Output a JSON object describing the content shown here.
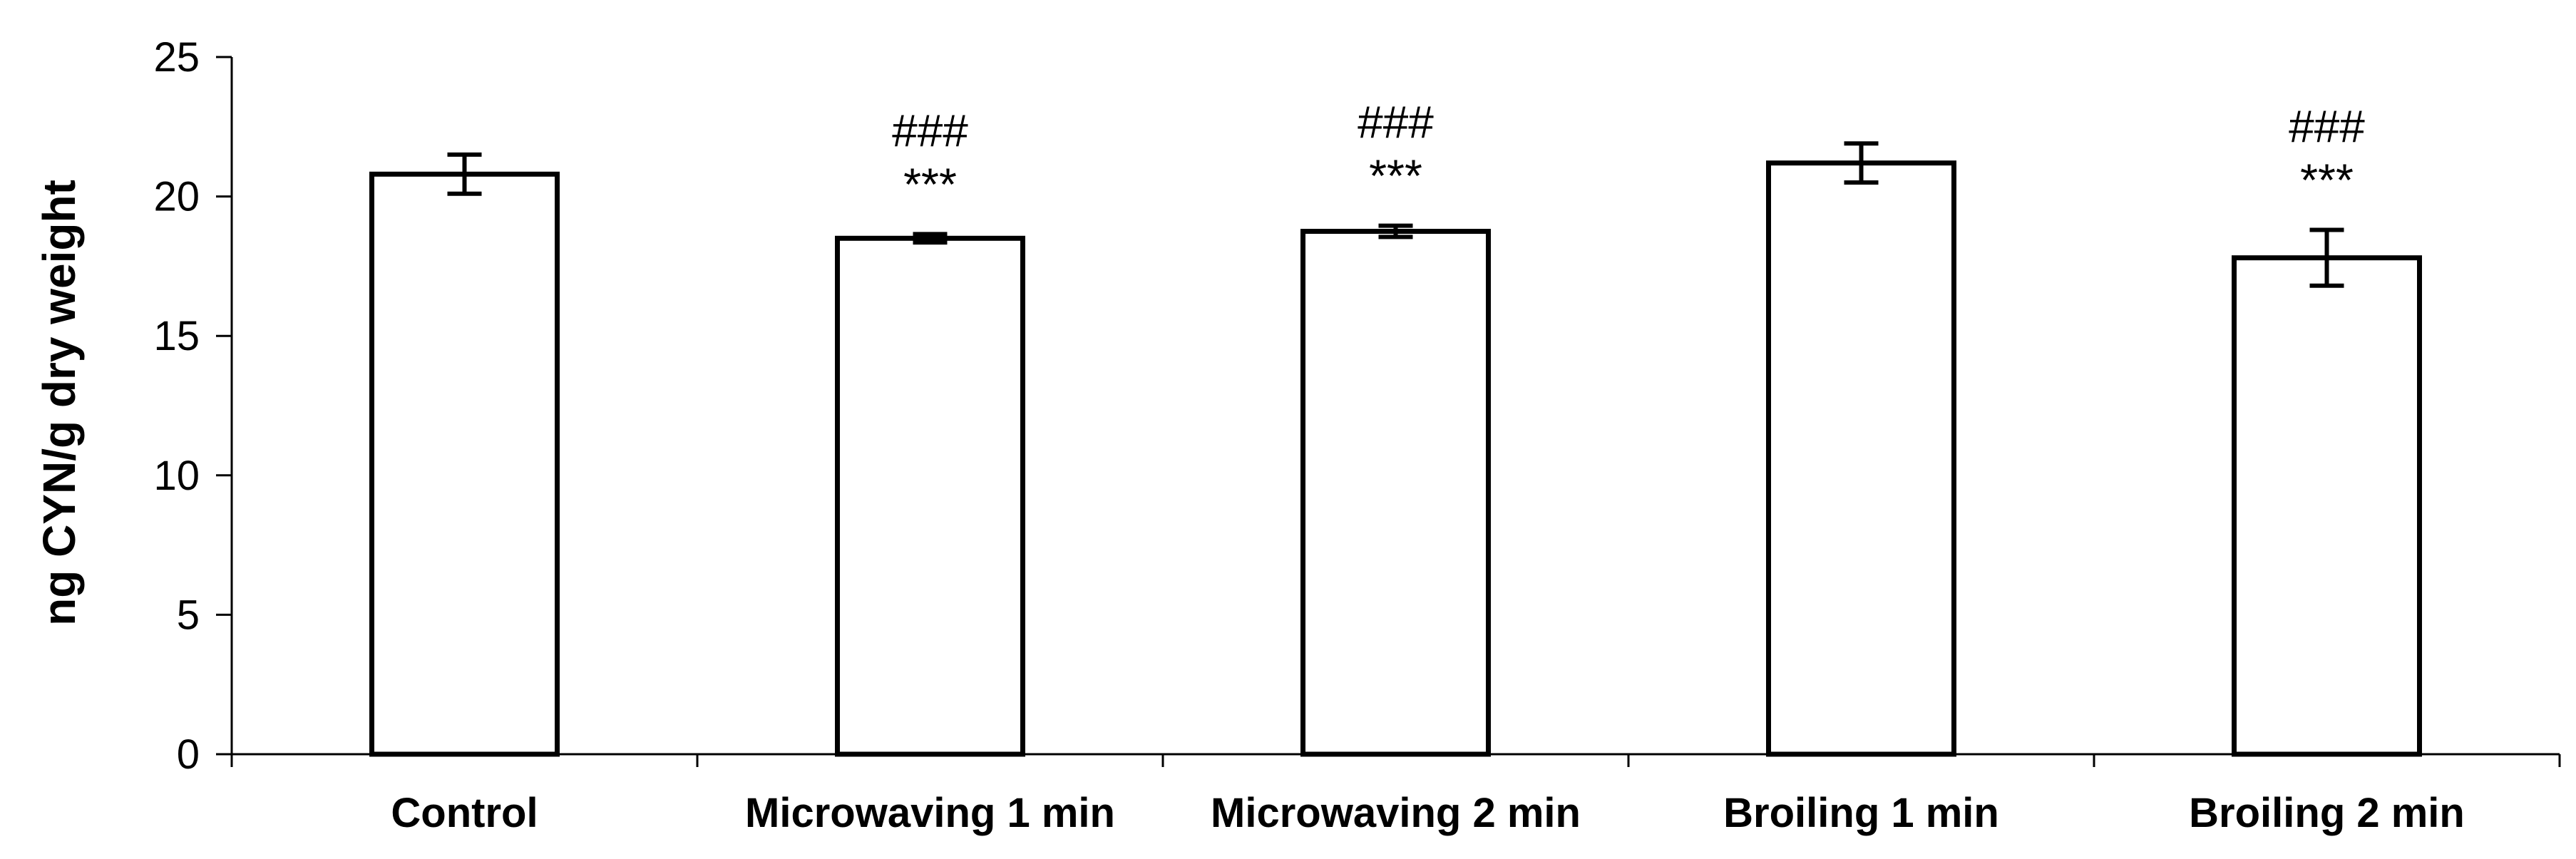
{
  "chart_data": {
    "type": "bar",
    "title": "",
    "xlabel": "",
    "ylabel": "ng  CYN/g dry weight",
    "ylim": [
      0,
      25
    ],
    "yticks": [
      "0",
      "5",
      "10",
      "15",
      "20",
      "25"
    ],
    "ytick_values": [
      0,
      5,
      10,
      15,
      20,
      25
    ],
    "grid": false,
    "legend": "none",
    "bar_fill": "#ffffff",
    "bar_stroke": "#000000",
    "categories": [
      "Control",
      "Microwaving 1 min",
      "Microwaving 2 min",
      "Broiling 1 min",
      "Broiling 2 min"
    ],
    "values": [
      20.8,
      18.5,
      18.75,
      21.2,
      17.8
    ],
    "errors": [
      0.7,
      0.15,
      0.2,
      0.7,
      1.0
    ],
    "annotations": [
      {
        "category": "Microwaving 1 min",
        "lines": [
          "###",
          "***"
        ]
      },
      {
        "category": "Microwaving 2 min",
        "lines": [
          "###",
          "***"
        ]
      },
      {
        "category": "Broiling 2 min",
        "lines": [
          "###",
          "***"
        ]
      }
    ]
  }
}
